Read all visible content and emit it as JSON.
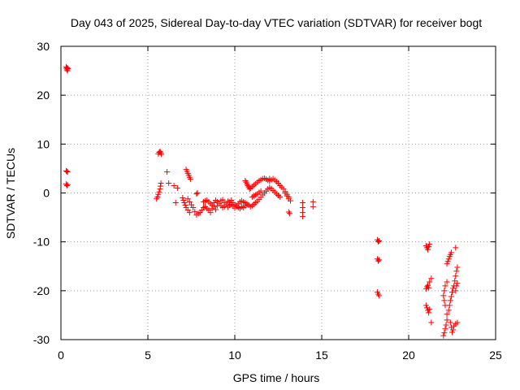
{
  "chart_data": {
    "type": "scatter",
    "title": "Day 043 of 2025, Sidereal Day-to-day VTEC variation (SDTVAR) for receiver bogt",
    "xlabel": "GPS time / hours",
    "ylabel": "SDTVAR / TECUs",
    "xlim": [
      0,
      25
    ],
    "ylim": [
      -30,
      30
    ],
    "xticks": [
      0,
      5,
      10,
      15,
      20,
      25
    ],
    "yticks": [
      -30,
      -20,
      -10,
      0,
      10,
      20,
      30
    ],
    "xtick_labels": [
      "0",
      "5",
      "10",
      "15",
      "20",
      "25"
    ],
    "ytick_labels": [
      "-30",
      "-20",
      "-10",
      "0",
      "10",
      "20",
      "30"
    ],
    "grid": true,
    "marker": "+",
    "color": "#ff0000",
    "series": [
      {
        "name": "SDTVAR",
        "points": [
          [
            0.3,
            25.8
          ],
          [
            0.32,
            25.5
          ],
          [
            0.34,
            25.2
          ],
          [
            0.36,
            25.6
          ],
          [
            0.38,
            25.0
          ],
          [
            0.4,
            25.4
          ],
          [
            0.3,
            4.5
          ],
          [
            0.34,
            4.4
          ],
          [
            0.38,
            4.3
          ],
          [
            0.3,
            1.8
          ],
          [
            0.34,
            1.5
          ],
          [
            0.38,
            1.7
          ],
          [
            5.5,
            -1.2
          ],
          [
            5.55,
            -0.8
          ],
          [
            5.6,
            -0.3
          ],
          [
            5.65,
            0.2
          ],
          [
            5.7,
            0.8
          ],
          [
            5.72,
            1.4
          ],
          [
            5.75,
            2.0
          ],
          [
            5.6,
            8.0
          ],
          [
            5.65,
            8.3
          ],
          [
            5.7,
            8.5
          ],
          [
            5.75,
            8.2
          ],
          [
            5.78,
            7.9
          ],
          [
            6.1,
            4.3
          ],
          [
            6.2,
            2.0
          ],
          [
            6.5,
            1.5
          ],
          [
            6.7,
            1.0
          ],
          [
            6.6,
            -2.0
          ],
          [
            7.0,
            -1.0
          ],
          [
            7.05,
            -1.5
          ],
          [
            7.1,
            -2.0
          ],
          [
            7.15,
            -2.5
          ],
          [
            7.2,
            -3.0
          ],
          [
            7.3,
            -3.5
          ],
          [
            7.4,
            -4.0
          ],
          [
            7.2,
            4.8
          ],
          [
            7.25,
            4.4
          ],
          [
            7.3,
            4.0
          ],
          [
            7.35,
            3.6
          ],
          [
            7.4,
            3.2
          ],
          [
            7.45,
            2.8
          ],
          [
            7.3,
            -1.2
          ],
          [
            7.4,
            -1.8
          ],
          [
            7.5,
            -2.4
          ],
          [
            7.6,
            -3.0
          ],
          [
            7.7,
            -3.8
          ],
          [
            7.8,
            -4.5
          ],
          [
            7.9,
            -4.2
          ],
          [
            7.8,
            -0.2
          ],
          [
            7.85,
            0.0
          ],
          [
            8.0,
            -4.0
          ],
          [
            8.1,
            -3.5
          ],
          [
            8.2,
            -3.0
          ],
          [
            8.3,
            -2.8
          ],
          [
            8.4,
            -3.2
          ],
          [
            8.2,
            -1.8
          ],
          [
            8.3,
            -1.6
          ],
          [
            8.4,
            -1.5
          ],
          [
            8.5,
            -1.8
          ],
          [
            8.6,
            -2.2
          ],
          [
            8.7,
            -2.5
          ],
          [
            8.8,
            -2.0
          ],
          [
            8.5,
            -3.5
          ],
          [
            8.6,
            -4.0
          ],
          [
            8.7,
            -3.2
          ],
          [
            8.8,
            -2.8
          ],
          [
            8.9,
            -3.4
          ],
          [
            9.0,
            -2.6
          ],
          [
            8.9,
            -1.5
          ],
          [
            9.0,
            -1.8
          ],
          [
            9.1,
            -2.2
          ],
          [
            9.2,
            -2.6
          ],
          [
            9.3,
            -3.0
          ],
          [
            9.4,
            -2.8
          ],
          [
            9.2,
            -1.6
          ],
          [
            9.3,
            -1.4
          ],
          [
            9.4,
            -2.0
          ],
          [
            9.5,
            -2.4
          ],
          [
            9.6,
            -2.9
          ],
          [
            9.7,
            -2.5
          ],
          [
            9.6,
            -1.7
          ],
          [
            9.7,
            -1.9
          ],
          [
            9.8,
            -2.3
          ],
          [
            9.9,
            -2.7
          ],
          [
            10.0,
            -3.1
          ],
          [
            10.1,
            -2.8
          ],
          [
            9.8,
            -1.5
          ],
          [
            9.9,
            -2.0
          ],
          [
            10.0,
            -2.4
          ],
          [
            10.1,
            -2.6
          ],
          [
            10.2,
            -2.2
          ],
          [
            10.3,
            -1.8
          ],
          [
            10.2,
            -3.0
          ],
          [
            10.3,
            -3.2
          ],
          [
            10.4,
            -2.8
          ],
          [
            10.5,
            -3.0
          ],
          [
            10.6,
            -2.7
          ],
          [
            10.7,
            -2.4
          ],
          [
            10.4,
            -1.6
          ],
          [
            10.5,
            -1.8
          ],
          [
            10.6,
            -2.0
          ],
          [
            10.7,
            -2.2
          ],
          [
            10.8,
            -2.5
          ],
          [
            10.9,
            -2.8
          ],
          [
            10.6,
            2.5
          ],
          [
            10.65,
            2.2
          ],
          [
            10.7,
            1.8
          ],
          [
            10.75,
            1.5
          ],
          [
            10.8,
            1.2
          ],
          [
            10.85,
            0.8
          ],
          [
            10.9,
            1.0
          ],
          [
            11.0,
            1.3
          ],
          [
            11.1,
            1.6
          ],
          [
            11.2,
            1.9
          ],
          [
            11.3,
            2.2
          ],
          [
            11.4,
            2.5
          ],
          [
            11.0,
            -2.6
          ],
          [
            11.1,
            -2.3
          ],
          [
            11.2,
            -2.0
          ],
          [
            11.3,
            -1.7
          ],
          [
            11.4,
            -1.3
          ],
          [
            11.5,
            -0.9
          ],
          [
            11.0,
            -0.8
          ],
          [
            11.1,
            -0.6
          ],
          [
            11.2,
            -0.4
          ],
          [
            11.3,
            -0.2
          ],
          [
            11.4,
            0.1
          ],
          [
            11.5,
            0.4
          ],
          [
            11.5,
            2.7
          ],
          [
            11.6,
            2.9
          ],
          [
            11.7,
            3.0
          ],
          [
            11.8,
            2.8
          ],
          [
            11.9,
            2.6
          ],
          [
            12.0,
            2.9
          ],
          [
            11.6,
            -0.4
          ],
          [
            11.7,
            0.0
          ],
          [
            11.8,
            0.4
          ],
          [
            11.9,
            0.8
          ],
          [
            12.0,
            1.1
          ],
          [
            12.1,
            0.9
          ],
          [
            12.0,
            2.4
          ],
          [
            12.1,
            2.7
          ],
          [
            12.2,
            2.9
          ],
          [
            12.3,
            2.6
          ],
          [
            12.4,
            2.3
          ],
          [
            12.5,
            2.0
          ],
          [
            12.2,
            0.5
          ],
          [
            12.3,
            0.2
          ],
          [
            12.4,
            -0.2
          ],
          [
            12.5,
            -0.5
          ],
          [
            12.6,
            -0.8
          ],
          [
            12.6,
            1.5
          ],
          [
            12.7,
            1.2
          ],
          [
            12.8,
            0.8
          ],
          [
            12.9,
            0.3
          ],
          [
            13.0,
            -0.3
          ],
          [
            13.1,
            -0.8
          ],
          [
            12.9,
            0.0
          ],
          [
            13.0,
            -0.6
          ],
          [
            13.1,
            -1.2
          ],
          [
            13.2,
            -1.6
          ],
          [
            13.1,
            -3.9
          ],
          [
            13.15,
            -4.2
          ],
          [
            13.9,
            -2.0
          ],
          [
            13.9,
            -3.0
          ],
          [
            13.9,
            -4.0
          ],
          [
            13.9,
            -4.8
          ],
          [
            14.5,
            -1.8
          ],
          [
            14.5,
            -2.8
          ],
          [
            18.2,
            -9.6
          ],
          [
            18.25,
            -10.0
          ],
          [
            18.3,
            -9.8
          ],
          [
            18.2,
            -13.5
          ],
          [
            18.25,
            -13.9
          ],
          [
            18.3,
            -13.7
          ],
          [
            18.2,
            -20.3
          ],
          [
            18.25,
            -20.7
          ],
          [
            18.3,
            -21.0
          ],
          [
            21.0,
            -10.8
          ],
          [
            21.05,
            -11.2
          ],
          [
            21.1,
            -11.6
          ],
          [
            21.15,
            -11.0
          ],
          [
            21.2,
            -10.5
          ],
          [
            21.0,
            -19.6
          ],
          [
            21.05,
            -19.2
          ],
          [
            21.1,
            -18.9
          ],
          [
            21.15,
            -19.4
          ],
          [
            21.0,
            -23.0
          ],
          [
            21.05,
            -23.5
          ],
          [
            21.1,
            -24.0
          ],
          [
            21.15,
            -24.5
          ],
          [
            21.2,
            -23.8
          ],
          [
            21.2,
            -18.2
          ],
          [
            21.3,
            -17.5
          ],
          [
            21.3,
            -26.5
          ],
          [
            22.0,
            -29.2
          ],
          [
            22.05,
            -28.6
          ],
          [
            22.1,
            -27.8
          ],
          [
            22.15,
            -27.0
          ],
          [
            22.2,
            -26.0
          ],
          [
            22.2,
            -24.8
          ],
          [
            22.1,
            -23.0
          ],
          [
            22.05,
            -22.0
          ],
          [
            22.0,
            -21.0
          ],
          [
            22.05,
            -20.0
          ],
          [
            22.1,
            -19.0
          ],
          [
            22.2,
            -18.2
          ],
          [
            22.2,
            -14.5
          ],
          [
            22.25,
            -14.0
          ],
          [
            22.3,
            -13.5
          ],
          [
            22.35,
            -13.0
          ],
          [
            22.4,
            -12.6
          ],
          [
            22.45,
            -12.2
          ],
          [
            22.3,
            -24.0
          ],
          [
            22.35,
            -23.0
          ],
          [
            22.4,
            -22.0
          ],
          [
            22.45,
            -21.2
          ],
          [
            22.5,
            -20.3
          ],
          [
            22.55,
            -19.5
          ],
          [
            22.4,
            -26.5
          ],
          [
            22.45,
            -27.5
          ],
          [
            22.5,
            -28.5
          ],
          [
            22.55,
            -28.0
          ],
          [
            22.6,
            -27.2
          ],
          [
            22.6,
            -19.0
          ],
          [
            22.65,
            -18.0
          ],
          [
            22.7,
            -17.0
          ],
          [
            22.75,
            -16.0
          ],
          [
            22.8,
            -15.2
          ],
          [
            22.7,
            -20.0
          ],
          [
            22.75,
            -19.0
          ],
          [
            22.8,
            -18.5
          ],
          [
            22.7,
            -26.8
          ],
          [
            22.8,
            -26.5
          ],
          [
            22.7,
            -11.2
          ]
        ]
      }
    ]
  }
}
